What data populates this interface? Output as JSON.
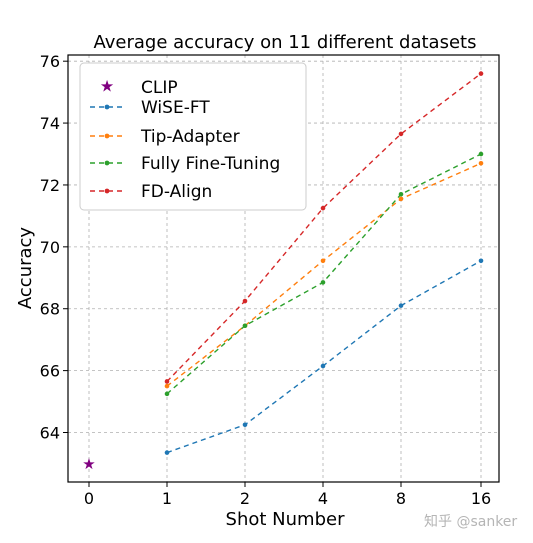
{
  "chart_data": {
    "type": "line",
    "title": "Average accuracy on 11 different datasets",
    "xlabel": "Shot Number",
    "ylabel": "Accuracy",
    "categories": [
      "0",
      "1",
      "2",
      "4",
      "8",
      "16"
    ],
    "ylim": [
      62.4,
      76.2
    ],
    "yticks": [
      64,
      66,
      68,
      70,
      72,
      74,
      76
    ],
    "grid": true,
    "legend_position": "top-left",
    "clip": {
      "name": "CLIP",
      "x": "0",
      "y": 63.0,
      "color": "#800080",
      "marker": "star"
    },
    "series": [
      {
        "name": "WiSE-FT",
        "color": "#1f77b4",
        "x": [
          "1",
          "2",
          "4",
          "8",
          "16"
        ],
        "values": [
          63.35,
          64.25,
          66.15,
          68.1,
          69.55
        ]
      },
      {
        "name": "Tip-Adapter",
        "color": "#ff7f0e",
        "x": [
          "1",
          "2",
          "4",
          "8",
          "16"
        ],
        "values": [
          65.5,
          67.45,
          69.55,
          71.55,
          72.7
        ]
      },
      {
        "name": "Fully Fine-Tuning",
        "color": "#2ca02c",
        "x": [
          "1",
          "2",
          "4",
          "8",
          "16"
        ],
        "values": [
          65.25,
          67.45,
          68.85,
          71.7,
          73.0
        ]
      },
      {
        "name": "FD-Align",
        "color": "#d62728",
        "x": [
          "1",
          "2",
          "4",
          "8",
          "16"
        ],
        "values": [
          65.65,
          68.25,
          71.25,
          73.65,
          75.6
        ]
      }
    ]
  },
  "watermark": "知乎 @sanker"
}
